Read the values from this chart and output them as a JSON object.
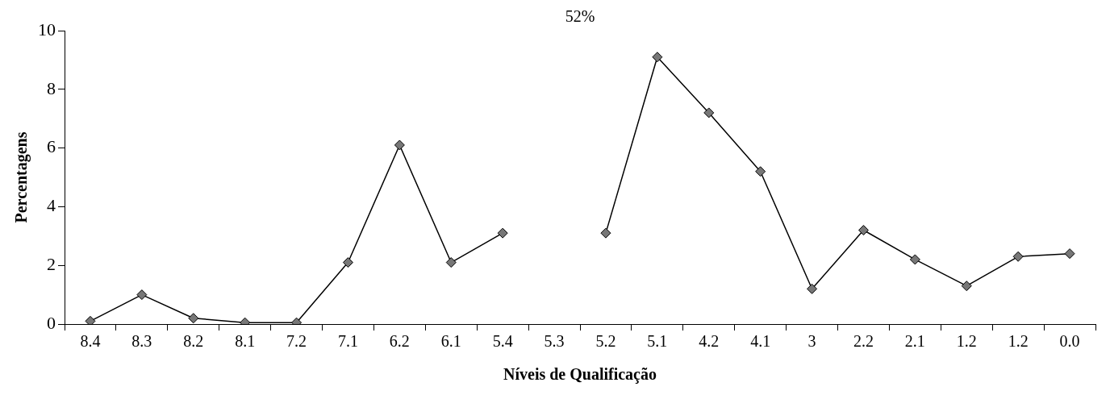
{
  "chart_data": {
    "type": "line",
    "xlabel": "Níveis de Qualificação",
    "ylabel": "Percentagens",
    "categories": [
      "8.4",
      "8.3",
      "8.2",
      "8.1",
      "7.2",
      "7.1",
      "6.2",
      "6.1",
      "5.4",
      "5.3",
      "5.2",
      "5.1",
      "4.2",
      "4.1",
      "3",
      "2.2",
      "2.1",
      "1.2",
      "1.2",
      "0.0"
    ],
    "series": [
      {
        "color": "#000000",
        "values": [
          0.1,
          1.0,
          0.2,
          0.05,
          0.05,
          2.1,
          6.1,
          2.1,
          3.1,
          null,
          3.1,
          9.1,
          7.2,
          5.2,
          1.2,
          3.2,
          2.2,
          1.3,
          2.3,
          2.4
        ]
      }
    ],
    "annotations": [
      "52%"
    ],
    "ylim": [
      0,
      10
    ],
    "yticks": [
      0,
      2,
      4,
      6,
      8,
      10
    ],
    "grid": false,
    "legend": false,
    "marker": "diamond",
    "line_style": "solid"
  }
}
